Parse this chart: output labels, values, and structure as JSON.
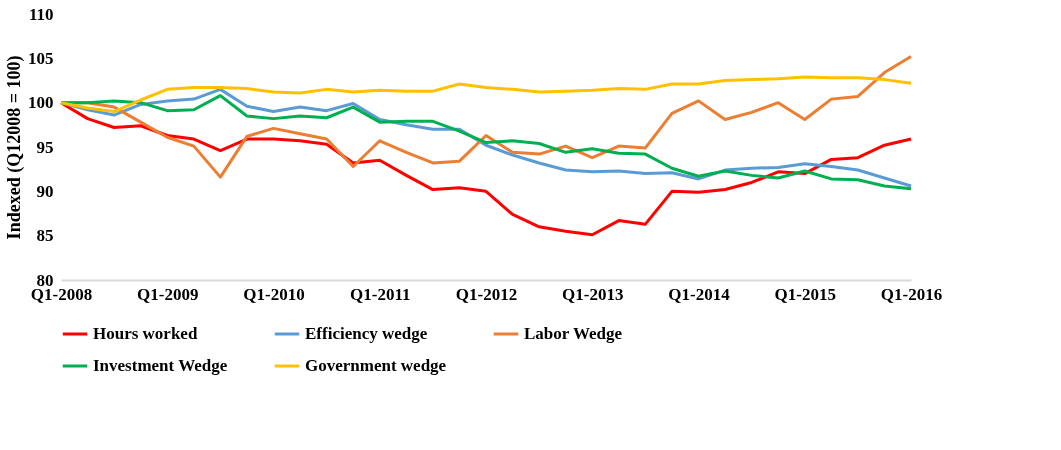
{
  "chart_data": {
    "type": "line",
    "ylabel": "Indexed (Q12008 = 100)",
    "categories": [
      "Q1-2008",
      null,
      null,
      null,
      "Q1-2009",
      null,
      null,
      null,
      "Q1-2010",
      null,
      null,
      null,
      "Q1-2011",
      null,
      null,
      null,
      "Q1-2012",
      null,
      null,
      null,
      "Q1-2013",
      null,
      null,
      null,
      "Q1-2014",
      null,
      null,
      null,
      "Q1-2015",
      null,
      null,
      null,
      "Q1-2016"
    ],
    "ylim": [
      80,
      110
    ],
    "yticks": [
      80,
      85,
      90,
      95,
      100,
      105,
      110
    ],
    "grid": false,
    "legend": "bottom",
    "marker": "none",
    "line_style": "solid",
    "series": [
      {
        "name": "Hours worked",
        "color": "#ff0000",
        "values": [
          100,
          98.2,
          97.2,
          97.4,
          96.3,
          95.9,
          94.6,
          95.9,
          95.9,
          95.7,
          95.3,
          93.2,
          93.5,
          91.8,
          90.2,
          90.4,
          90.0,
          87.4,
          86.0,
          85.5,
          85.1,
          86.7,
          86.3,
          90.0,
          89.9,
          90.2,
          91.0,
          92.2,
          92.0,
          93.6,
          93.8,
          95.2,
          95.9
        ]
      },
      {
        "name": "Efficiency wedge",
        "color": "#5b9bd5",
        "values": [
          100,
          99.2,
          98.6,
          99.8,
          100.2,
          100.4,
          101.5,
          99.6,
          99.0,
          99.5,
          99.1,
          99.9,
          98.1,
          97.5,
          97.0,
          97.0,
          95.2,
          94.1,
          93.2,
          92.4,
          92.2,
          92.3,
          92.0,
          92.1,
          91.4,
          92.4,
          92.6,
          92.7,
          93.1,
          92.8,
          92.4,
          91.5,
          90.6
        ]
      },
      {
        "name": "Labor Wedge",
        "color": "#ed7d31",
        "values": [
          100,
          100.0,
          99.5,
          97.8,
          96.1,
          95.1,
          91.6,
          96.2,
          97.1,
          96.5,
          95.9,
          92.8,
          95.7,
          94.4,
          93.2,
          93.4,
          96.3,
          94.4,
          94.2,
          95.1,
          93.8,
          95.1,
          94.9,
          98.8,
          100.2,
          98.1,
          98.9,
          100.0,
          98.1,
          100.4,
          100.7,
          103.4,
          105.2
        ]
      },
      {
        "name": "Investment Wedge",
        "color": "#00b050",
        "values": [
          100,
          100,
          100.2,
          100,
          99.1,
          99.2,
          100.8,
          98.5,
          98.2,
          98.5,
          98.3,
          99.5,
          97.8,
          97.9,
          97.9,
          96.8,
          95.5,
          95.7,
          95.4,
          94.4,
          94.8,
          94.3,
          94.2,
          92.6,
          91.7,
          92.3,
          91.8,
          91.5,
          92.3,
          91.4,
          91.3,
          90.6,
          90.3
        ]
      },
      {
        "name": "Government wedge",
        "color": "#ffc000",
        "values": [
          100,
          99.4,
          99.0,
          100.3,
          101.5,
          101.7,
          101.7,
          101.6,
          101.2,
          101.1,
          101.5,
          101.2,
          101.4,
          101.3,
          101.3,
          102.1,
          101.7,
          101.5,
          101.2,
          101.3,
          101.4,
          101.6,
          101.5,
          102.1,
          102.1,
          102.5,
          102.6,
          102.7,
          102.9,
          102.8,
          102.8,
          102.6,
          102.2
        ]
      }
    ]
  }
}
